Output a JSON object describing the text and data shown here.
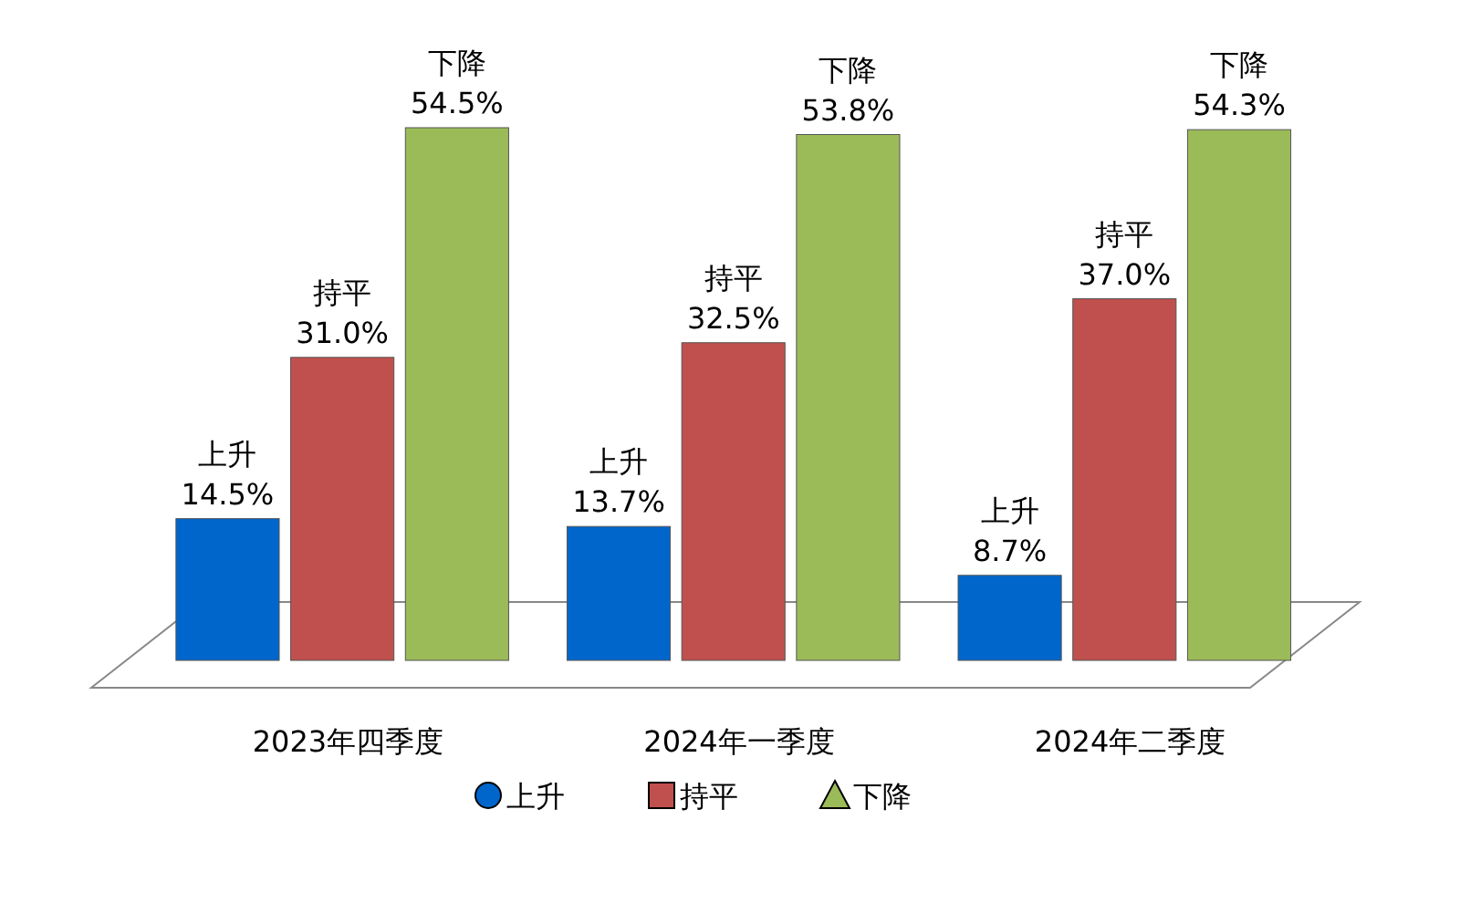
{
  "chart_data": {
    "type": "bar",
    "categories": [
      "2023年四季度",
      "2024年一季度",
      "2024年二季度"
    ],
    "series": [
      {
        "name": "上升",
        "color": "#0066cc",
        "values": [
          14.5,
          13.7,
          8.7
        ],
        "value_labels": [
          "14.5%",
          "13.7%",
          "8.7%"
        ]
      },
      {
        "name": "持平",
        "color": "#c0504d",
        "values": [
          31.0,
          32.5,
          37.0
        ],
        "value_labels": [
          "31.0%",
          "32.5%",
          "37.0%"
        ]
      },
      {
        "name": "下降",
        "color": "#9bbb59",
        "values": [
          54.5,
          53.8,
          54.3
        ],
        "value_labels": [
          "54.5%",
          "53.8%",
          "54.3%"
        ]
      }
    ],
    "legend": "bottom"
  }
}
